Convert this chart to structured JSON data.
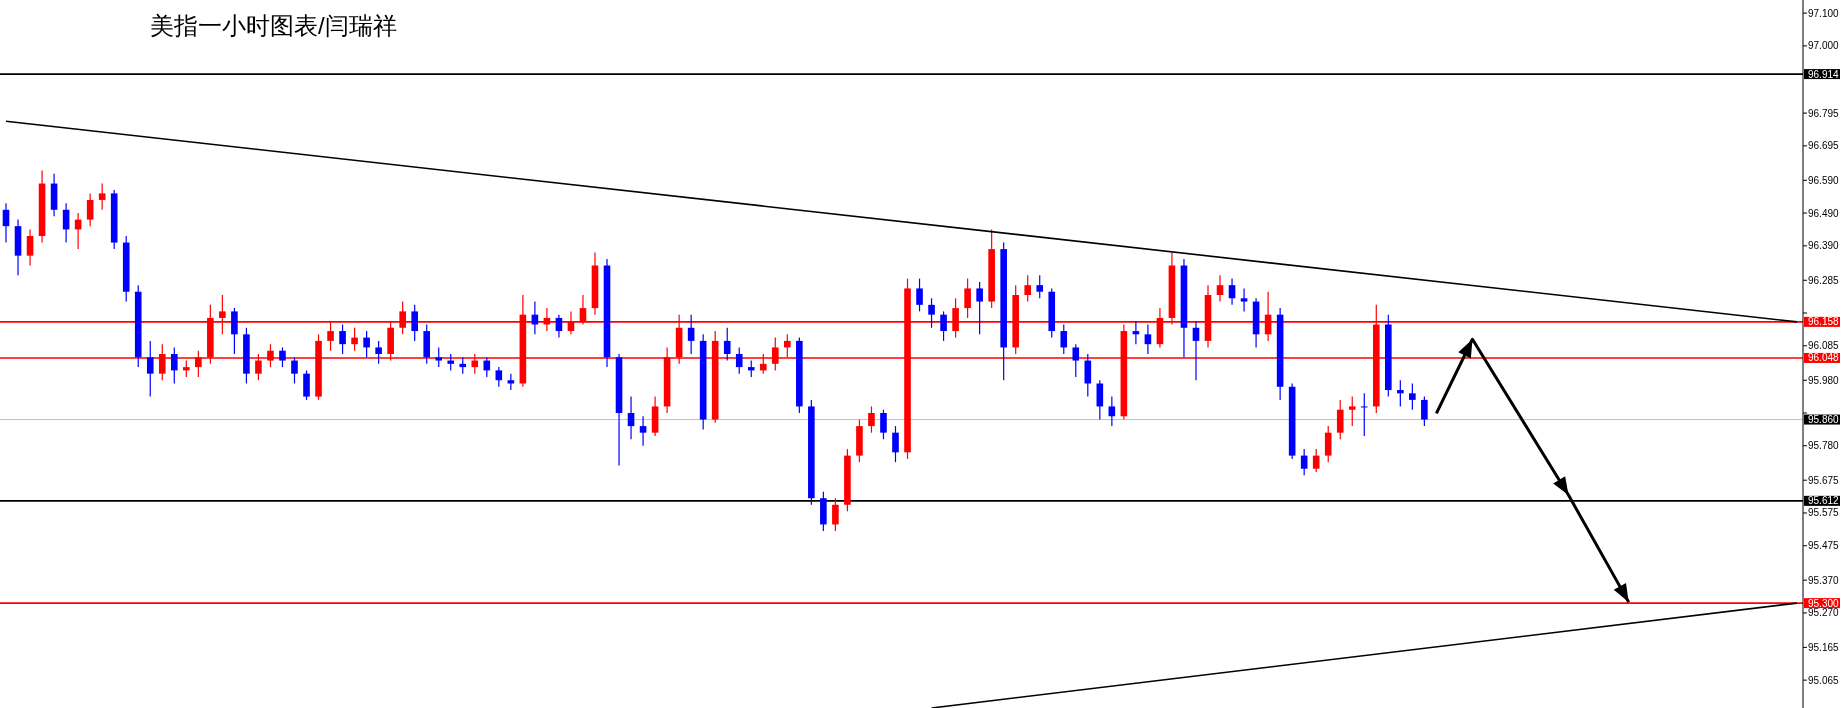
{
  "chart_data": {
    "type": "candlestick",
    "title": "美指一小时图表/闫瑞祥",
    "categories": [
      null,
      null,
      null,
      null,
      null,
      null,
      null,
      null,
      null,
      null,
      null,
      null,
      null,
      null,
      null,
      null,
      null,
      null,
      null,
      null,
      null,
      null,
      null,
      null,
      null,
      null,
      null,
      null,
      null,
      null,
      null,
      null,
      null,
      null,
      null,
      null,
      null,
      null,
      null,
      null,
      null,
      null,
      null,
      null,
      null,
      null,
      null,
      null,
      null,
      null,
      null,
      null,
      null,
      null,
      null,
      null,
      null,
      null,
      null,
      null,
      null,
      null,
      null,
      null,
      null,
      null,
      null,
      null,
      null,
      null,
      null,
      null,
      null,
      null,
      null,
      null,
      null,
      null,
      null,
      null,
      null,
      null,
      null,
      null,
      null,
      null,
      null,
      null,
      null,
      null,
      null,
      null,
      null,
      null,
      null,
      null,
      null,
      null,
      null,
      null,
      null,
      null,
      null,
      null,
      null,
      null,
      null,
      null,
      null,
      null,
      null,
      null,
      null,
      null,
      null,
      null,
      null,
      null,
      null,
      null,
      null,
      null,
      null,
      null,
      null,
      null,
      null,
      null,
      null,
      null,
      null,
      null,
      null,
      null,
      null,
      null,
      null,
      null,
      null,
      null,
      null,
      null,
      null,
      null,
      null,
      null,
      null,
      null,
      null,
      null
    ],
    "ohlc": [
      [
        96.5,
        96.52,
        96.4,
        96.45
      ],
      [
        96.45,
        96.47,
        96.3,
        96.36
      ],
      [
        96.36,
        96.44,
        96.33,
        96.42
      ],
      [
        96.42,
        96.62,
        96.4,
        96.58
      ],
      [
        96.58,
        96.61,
        96.48,
        96.5
      ],
      [
        96.5,
        96.52,
        96.4,
        96.44
      ],
      [
        96.44,
        96.49,
        96.38,
        96.47
      ],
      [
        96.47,
        96.55,
        96.45,
        96.53
      ],
      [
        96.53,
        96.58,
        96.5,
        96.55
      ],
      [
        96.55,
        96.56,
        96.38,
        96.4
      ],
      [
        96.4,
        96.42,
        96.22,
        96.25
      ],
      [
        96.25,
        96.27,
        96.02,
        96.05
      ],
      [
        96.05,
        96.1,
        95.93,
        96.0
      ],
      [
        96.0,
        96.09,
        95.98,
        96.06
      ],
      [
        96.06,
        96.08,
        95.97,
        96.01
      ],
      [
        96.01,
        96.04,
        95.99,
        96.02
      ],
      [
        96.02,
        96.07,
        95.99,
        96.05
      ],
      [
        96.05,
        96.21,
        96.03,
        96.17
      ],
      [
        96.17,
        96.24,
        96.12,
        96.19
      ],
      [
        96.19,
        96.2,
        96.06,
        96.12
      ],
      [
        96.12,
        96.14,
        95.97,
        96.0
      ],
      [
        96.0,
        96.06,
        95.98,
        96.04
      ],
      [
        96.04,
        96.09,
        96.02,
        96.07
      ],
      [
        96.07,
        96.08,
        96.02,
        96.04
      ],
      [
        96.04,
        96.05,
        95.97,
        96.0
      ],
      [
        96.0,
        96.01,
        95.92,
        95.93
      ],
      [
        95.93,
        96.12,
        95.92,
        96.1
      ],
      [
        96.1,
        96.16,
        96.07,
        96.13
      ],
      [
        96.13,
        96.15,
        96.06,
        96.09
      ],
      [
        96.09,
        96.14,
        96.07,
        96.11
      ],
      [
        96.11,
        96.13,
        96.05,
        96.08
      ],
      [
        96.08,
        96.1,
        96.03,
        96.06
      ],
      [
        96.06,
        96.16,
        96.04,
        96.14
      ],
      [
        96.14,
        96.22,
        96.12,
        96.19
      ],
      [
        96.19,
        96.21,
        96.1,
        96.13
      ],
      [
        96.13,
        96.15,
        96.03,
        96.05
      ],
      [
        96.05,
        96.08,
        96.02,
        96.04
      ],
      [
        96.04,
        96.06,
        96.01,
        96.03
      ],
      [
        96.03,
        96.05,
        96.0,
        96.02
      ],
      [
        96.02,
        96.06,
        96.0,
        96.04
      ],
      [
        96.04,
        96.05,
        95.99,
        96.01
      ],
      [
        96.01,
        96.02,
        95.96,
        95.98
      ],
      [
        95.98,
        96.0,
        95.95,
        95.97
      ],
      [
        95.97,
        96.24,
        95.96,
        96.18
      ],
      [
        96.18,
        96.22,
        96.12,
        96.15
      ],
      [
        96.15,
        96.2,
        96.13,
        96.17
      ],
      [
        96.17,
        96.18,
        96.11,
        96.13
      ],
      [
        96.13,
        96.19,
        96.12,
        96.16
      ],
      [
        96.16,
        96.24,
        96.15,
        96.2
      ],
      [
        96.2,
        96.37,
        96.18,
        96.33
      ],
      [
        96.33,
        96.35,
        96.02,
        96.05
      ],
      [
        96.05,
        96.06,
        95.72,
        95.88
      ],
      [
        95.88,
        95.93,
        95.8,
        95.84
      ],
      [
        95.84,
        95.87,
        95.78,
        95.82
      ],
      [
        95.82,
        95.93,
        95.81,
        95.9
      ],
      [
        95.9,
        96.08,
        95.88,
        96.05
      ],
      [
        96.05,
        96.18,
        96.03,
        96.14
      ],
      [
        96.14,
        96.18,
        96.06,
        96.1
      ],
      [
        96.1,
        96.12,
        95.83,
        95.86
      ],
      [
        95.86,
        96.13,
        95.85,
        96.1
      ],
      [
        96.1,
        96.14,
        96.04,
        96.06
      ],
      [
        96.06,
        96.08,
        96.0,
        96.02
      ],
      [
        96.02,
        96.04,
        95.99,
        96.01
      ],
      [
        96.01,
        96.06,
        96.0,
        96.03
      ],
      [
        96.03,
        96.11,
        96.01,
        96.08
      ],
      [
        96.08,
        96.12,
        96.05,
        96.1
      ],
      [
        96.1,
        96.11,
        95.88,
        95.9
      ],
      [
        95.9,
        95.92,
        95.6,
        95.62
      ],
      [
        95.62,
        95.64,
        95.52,
        95.54
      ],
      [
        95.54,
        95.62,
        95.52,
        95.6
      ],
      [
        95.6,
        95.77,
        95.58,
        95.75
      ],
      [
        95.75,
        95.86,
        95.73,
        95.84
      ],
      [
        95.84,
        95.9,
        95.82,
        95.88
      ],
      [
        95.88,
        95.89,
        95.8,
        95.82
      ],
      [
        95.82,
        95.84,
        95.73,
        95.76
      ],
      [
        95.76,
        96.29,
        95.74,
        96.26
      ],
      [
        96.26,
        96.29,
        96.19,
        96.21
      ],
      [
        96.21,
        96.23,
        96.14,
        96.18
      ],
      [
        96.18,
        96.19,
        96.1,
        96.13
      ],
      [
        96.13,
        96.23,
        96.11,
        96.2
      ],
      [
        96.2,
        96.29,
        96.17,
        96.26
      ],
      [
        96.26,
        96.28,
        96.12,
        96.22
      ],
      [
        96.22,
        96.44,
        96.2,
        96.38
      ],
      [
        96.38,
        96.4,
        95.98,
        96.08
      ],
      [
        96.08,
        96.27,
        96.06,
        96.24
      ],
      [
        96.24,
        96.3,
        96.22,
        96.27
      ],
      [
        96.27,
        96.3,
        96.23,
        96.25
      ],
      [
        96.25,
        96.26,
        96.11,
        96.13
      ],
      [
        96.13,
        96.15,
        96.06,
        96.08
      ],
      [
        96.08,
        96.09,
        95.99,
        96.04
      ],
      [
        96.04,
        96.06,
        95.93,
        95.97
      ],
      [
        95.97,
        95.98,
        95.86,
        95.9
      ],
      [
        95.9,
        95.93,
        95.84,
        95.87
      ],
      [
        95.87,
        96.15,
        95.86,
        96.13
      ],
      [
        96.13,
        96.16,
        96.09,
        96.12
      ],
      [
        96.12,
        96.15,
        96.06,
        96.09
      ],
      [
        96.09,
        96.2,
        96.08,
        96.17
      ],
      [
        96.17,
        96.37,
        96.15,
        96.33
      ],
      [
        96.33,
        96.35,
        96.05,
        96.14
      ],
      [
        96.14,
        96.16,
        95.98,
        96.1
      ],
      [
        96.1,
        96.27,
        96.08,
        96.24
      ],
      [
        96.24,
        96.3,
        96.22,
        96.27
      ],
      [
        96.27,
        96.29,
        96.21,
        96.23
      ],
      [
        96.23,
        96.26,
        96.19,
        96.22
      ],
      [
        96.22,
        96.23,
        96.08,
        96.12
      ],
      [
        96.12,
        96.25,
        96.1,
        96.18
      ],
      [
        96.18,
        96.2,
        95.92,
        95.96
      ],
      [
        95.96,
        95.97,
        95.74,
        95.75
      ],
      [
        95.75,
        95.77,
        95.69,
        95.71
      ],
      [
        95.71,
        95.77,
        95.7,
        95.75
      ],
      [
        95.75,
        95.84,
        95.73,
        95.82
      ],
      [
        95.82,
        95.92,
        95.8,
        95.89
      ],
      [
        95.89,
        95.93,
        95.84,
        95.9
      ],
      [
        95.9,
        95.94,
        95.81,
        95.9
      ],
      [
        95.9,
        96.21,
        95.88,
        96.15
      ],
      [
        96.15,
        96.18,
        95.93,
        95.95
      ],
      [
        95.95,
        95.98,
        95.9,
        95.94
      ],
      [
        95.94,
        95.97,
        95.89,
        95.92
      ],
      [
        95.92,
        95.93,
        95.84,
        95.86
      ],
      null,
      null,
      null,
      null,
      null,
      null,
      null,
      null,
      null,
      null,
      null,
      null,
      null,
      null,
      null,
      null,
      null,
      null,
      null,
      null,
      null,
      null,
      null,
      null,
      null,
      null,
      null,
      null,
      null,
      null,
      null
    ],
    "colors": [
      "#0000ff",
      "#0000ff",
      "#ff0000",
      "#ff0000",
      "#0000ff",
      "#0000ff",
      "#ff0000",
      "#ff0000",
      "#ff0000",
      "#0000ff",
      "#0000ff",
      "#0000ff",
      "#0000ff",
      "#ff0000",
      "#0000ff",
      "#ff0000",
      "#ff0000",
      "#ff0000",
      "#ff0000",
      "#0000ff",
      "#0000ff",
      "#ff0000",
      "#ff0000",
      "#0000ff",
      "#0000ff",
      "#0000ff",
      "#ff0000",
      "#ff0000",
      "#0000ff",
      "#ff0000",
      "#0000ff",
      "#0000ff",
      "#ff0000",
      "#ff0000",
      "#0000ff",
      "#0000ff",
      "#0000ff",
      "#0000ff",
      "#0000ff",
      "#ff0000",
      "#0000ff",
      "#0000ff",
      "#0000ff",
      "#ff0000",
      "#0000ff",
      "#ff0000",
      "#0000ff",
      "#ff0000",
      "#ff0000",
      "#ff0000",
      "#0000ff",
      "#0000ff",
      "#0000ff",
      "#0000ff",
      "#ff0000",
      "#ff0000",
      "#ff0000",
      "#0000ff",
      "#0000ff",
      "#ff0000",
      "#0000ff",
      "#0000ff",
      "#0000ff",
      "#ff0000",
      "#ff0000",
      "#ff0000",
      "#0000ff",
      "#0000ff",
      "#0000ff",
      "#ff0000",
      "#ff0000",
      "#ff0000",
      "#ff0000",
      "#0000ff",
      "#0000ff",
      "#ff0000",
      "#0000ff",
      "#0000ff",
      "#0000ff",
      "#ff0000",
      "#ff0000",
      "#0000ff",
      "#ff0000",
      "#0000ff",
      "#ff0000",
      "#ff0000",
      "#0000ff",
      "#0000ff",
      "#0000ff",
      "#0000ff",
      "#0000ff",
      "#0000ff",
      "#0000ff",
      "#ff0000",
      "#0000ff",
      "#0000ff",
      "#ff0000",
      "#ff0000",
      "#0000ff",
      "#0000ff",
      "#ff0000",
      "#ff0000",
      "#0000ff",
      "#0000ff",
      "#0000ff",
      "#ff0000",
      "#0000ff",
      "#0000ff",
      "#0000ff",
      "#ff0000",
      "#ff0000",
      "#ff0000",
      "#ff0000",
      "#0000ff",
      "#ff0000",
      "#0000ff",
      "#0000ff",
      "#0000ff",
      "#0000ff",
      null,
      null,
      null,
      null,
      null,
      null,
      null,
      null,
      null,
      null,
      null,
      null,
      null,
      null,
      null,
      null,
      null,
      null,
      null,
      null,
      null,
      null,
      null,
      null,
      null,
      null,
      null,
      null,
      null,
      null,
      null
    ],
    "series": [
      {
        "type": "line",
        "color": "#000000",
        "values": [
          96.77,
          null,
          null,
          null,
          null,
          null,
          null,
          null,
          null,
          null,
          null,
          null,
          null,
          null,
          null,
          null,
          null,
          null,
          null,
          null,
          null,
          null,
          null,
          null,
          null,
          null,
          null,
          null,
          null,
          null,
          null,
          null,
          null,
          null,
          null,
          null,
          null,
          null,
          null,
          null,
          null,
          null,
          null,
          null,
          null,
          null,
          null,
          null,
          null,
          null,
          null,
          null,
          null,
          null,
          null,
          null,
          null,
          null,
          null,
          null,
          null,
          null,
          null,
          null,
          null,
          null,
          null,
          null,
          null,
          null,
          null,
          null,
          null,
          null,
          null,
          null,
          null,
          null,
          null,
          null,
          null,
          null,
          null,
          null,
          null,
          null,
          null,
          null,
          null,
          null,
          null,
          null,
          null,
          null,
          null,
          null,
          null,
          null,
          null,
          null,
          null,
          null,
          null,
          null,
          null,
          null,
          null,
          null,
          null,
          null,
          null,
          null,
          null,
          null,
          null,
          null,
          null,
          null,
          null,
          null,
          null,
          null,
          null,
          null,
          null,
          null,
          null,
          null,
          null,
          null,
          null,
          null,
          null,
          null,
          null,
          null,
          null,
          null,
          null,
          null,
          null,
          null,
          null,
          null,
          null,
          null,
          null,
          null,
          null,
          96.158
        ]
      },
      {
        "type": "line",
        "color": "#000000",
        "values": [
          null,
          null,
          null,
          null,
          null,
          null,
          null,
          null,
          null,
          null,
          null,
          null,
          null,
          null,
          null,
          null,
          null,
          null,
          null,
          null,
          null,
          null,
          null,
          null,
          null,
          null,
          null,
          null,
          null,
          null,
          null,
          null,
          null,
          null,
          null,
          null,
          null,
          null,
          null,
          null,
          null,
          null,
          null,
          null,
          null,
          null,
          null,
          null,
          null,
          null,
          null,
          null,
          null,
          null,
          null,
          null,
          null,
          null,
          null,
          null,
          null,
          null,
          null,
          null,
          null,
          null,
          null,
          null,
          null,
          null,
          null,
          null,
          null,
          null,
          null,
          null,
          null,
          94.98,
          null,
          null,
          null,
          null,
          null,
          null,
          null,
          null,
          null,
          null,
          null,
          null,
          null,
          null,
          null,
          null,
          null,
          null,
          null,
          null,
          null,
          null,
          null,
          null,
          null,
          null,
          null,
          null,
          null,
          null,
          null,
          null,
          null,
          null,
          null,
          null,
          null,
          null,
          null,
          null,
          null,
          null,
          null,
          null,
          null,
          null,
          null,
          null,
          null,
          null,
          null,
          null,
          null,
          null,
          null,
          null,
          null,
          null,
          null,
          null,
          null,
          null,
          null,
          null,
          null,
          null,
          null,
          null,
          null,
          null,
          null,
          95.3
        ]
      },
      {
        "type": "line",
        "color": "#000000",
        "values": [
          null,
          null,
          null,
          null,
          null,
          null,
          null,
          null,
          null,
          null,
          null,
          null,
          null,
          null,
          null,
          null,
          null,
          null,
          null,
          null,
          null,
          null,
          null,
          null,
          null,
          null,
          null,
          null,
          null,
          null,
          null,
          null,
          null,
          null,
          null,
          null,
          null,
          null,
          null,
          null,
          null,
          null,
          null,
          null,
          null,
          null,
          null,
          null,
          null,
          null,
          null,
          null,
          null,
          null,
          null,
          null,
          null,
          null,
          null,
          null,
          null,
          null,
          null,
          null,
          null,
          null,
          null,
          null,
          null,
          null,
          null,
          null,
          null,
          null,
          null,
          null,
          null,
          null,
          null,
          null,
          null,
          null,
          null,
          null,
          null,
          null,
          null,
          null,
          null,
          null,
          null,
          null,
          null,
          null,
          null,
          null,
          null,
          null,
          null,
          null,
          null,
          null,
          null,
          null,
          null,
          null,
          null,
          null,
          null,
          null,
          null,
          null,
          null,
          null,
          null,
          null,
          null,
          null,
          null,
          95.879,
          null,
          null,
          96.105,
          null,
          null,
          null,
          null,
          null,
          null,
          null,
          95.629,
          null,
          null,
          null,
          null,
          95.303,
          null,
          null,
          null,
          null,
          null,
          null,
          null,
          null,
          null,
          null,
          null,
          null,
          null,
          null
        ]
      }
    ],
    "ylim": [
      94.98,
      97.14
    ],
    "yticks": [
      {
        "value": 97.1,
        "label": "97.100"
      },
      {
        "value": 97.0,
        "label": "97.000"
      },
      {
        "value": 96.795,
        "label": "96.795"
      },
      {
        "value": 96.695,
        "label": "96.695"
      },
      {
        "value": 96.59,
        "label": "96.590"
      },
      {
        "value": 96.49,
        "label": "96.490"
      },
      {
        "value": 96.39,
        "label": "96.390"
      },
      {
        "value": 96.285,
        "label": "96.285"
      },
      {
        "value": 96.185,
        "label": null
      },
      {
        "value": 96.085,
        "label": "96.085"
      },
      {
        "value": 95.98,
        "label": "95.980"
      },
      {
        "value": 95.88,
        "label": null
      },
      {
        "value": 95.78,
        "label": "95.780"
      },
      {
        "value": 95.675,
        "label": "95.675"
      },
      {
        "value": 95.575,
        "label": "95.575"
      },
      {
        "value": 95.475,
        "label": "95.475"
      },
      {
        "value": 95.37,
        "label": "95.370"
      },
      {
        "value": 95.27,
        "label": "95.270"
      },
      {
        "value": 95.165,
        "label": "95.165"
      },
      {
        "value": 95.065,
        "label": "95.065"
      }
    ],
    "ref_lines": [
      {
        "axis": "y",
        "value": 96.914,
        "label": "96.914",
        "color": "#000000"
      },
      {
        "axis": "y",
        "value": 96.158,
        "label": "96.158",
        "color": "#ff0000"
      },
      {
        "axis": "y",
        "value": 96.048,
        "label": "96.048",
        "color": "#ff0000"
      },
      {
        "axis": "y",
        "value": 95.86,
        "label": "95.860",
        "color": "#c0c0c0"
      },
      {
        "axis": "y",
        "value": 95.612,
        "label": "95.612",
        "color": "#000000"
      },
      {
        "axis": "y",
        "value": 95.3,
        "label": "95.300",
        "color": "#ff0000"
      }
    ],
    "tick_labels": "y"
  }
}
